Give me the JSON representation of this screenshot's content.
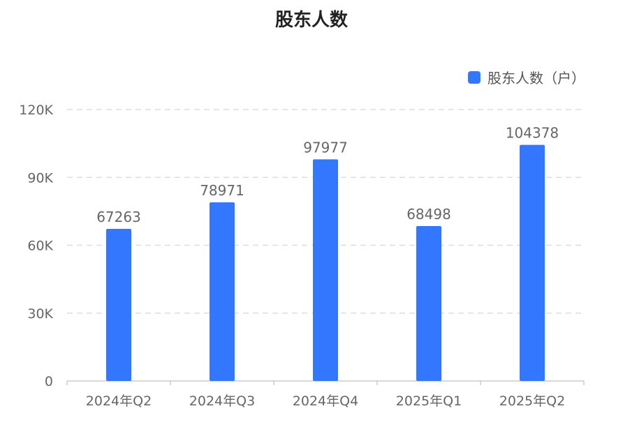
{
  "chart_data": {
    "type": "bar",
    "title": "股东人数",
    "categories": [
      "2024年Q2",
      "2024年Q3",
      "2024年Q4",
      "2025年Q1",
      "2025年Q2"
    ],
    "series": [
      {
        "name": "股东人数（户）",
        "values": [
          67263,
          78971,
          97977,
          68498,
          104378
        ],
        "color": "#3377ff"
      }
    ],
    "data_labels": [
      "67263",
      "78971",
      "97977",
      "68498",
      "104378"
    ],
    "y_ticks": [
      0,
      30000,
      60000,
      90000,
      120000
    ],
    "y_tick_labels": [
      "0",
      "30K",
      "60K",
      "90K",
      "120K"
    ],
    "ylim": [
      0,
      120000
    ],
    "grid": true,
    "legend_position": "top-right"
  }
}
